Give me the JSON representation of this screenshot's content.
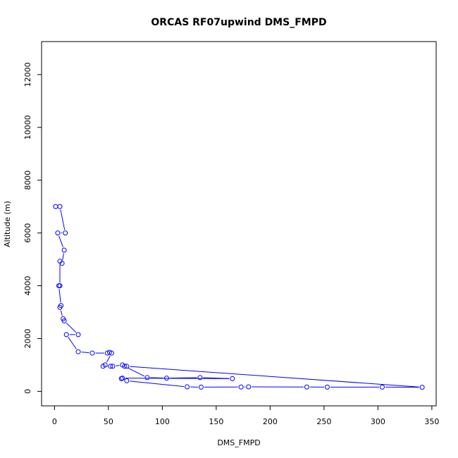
{
  "chart_data": {
    "type": "line",
    "title": "ORCAS RF07upwind DMS_FMPD",
    "xlabel": "DMS_FMPD",
    "ylabel": "Altitude (m)",
    "xlim": [
      -12,
      354
    ],
    "ylim": [
      -550,
      13250
    ],
    "xticks": [
      0,
      50,
      100,
      150,
      200,
      250,
      300,
      350
    ],
    "yticks": [
      0,
      2000,
      4000,
      6000,
      8000,
      10000,
      12000
    ],
    "grid": false,
    "markers": "open-circle",
    "series": [
      {
        "color": "#0000ff",
        "points": [
          [
            1,
            7000
          ],
          [
            5,
            7000
          ],
          [
            10,
            6000
          ],
          [
            3,
            6000
          ],
          [
            9,
            5350
          ],
          [
            7,
            4850
          ],
          [
            5,
            4930
          ],
          [
            5,
            4000
          ],
          [
            4,
            4000
          ],
          [
            6,
            3250
          ],
          [
            5,
            3180
          ],
          [
            8,
            2750
          ],
          [
            9,
            2670
          ],
          [
            22,
            2150
          ],
          [
            11,
            2150
          ],
          [
            22,
            1500
          ],
          [
            35,
            1450
          ],
          [
            49,
            1450
          ],
          [
            51,
            1480
          ],
          [
            53,
            1450
          ],
          [
            47,
            1000
          ],
          [
            45,
            950
          ],
          [
            52,
            950
          ],
          [
            54,
            950
          ],
          [
            63,
            1000
          ],
          [
            65,
            950
          ],
          [
            86,
            520
          ],
          [
            104,
            500
          ],
          [
            135,
            520
          ],
          [
            165,
            480
          ],
          [
            63,
            500
          ],
          [
            62,
            480
          ],
          [
            67,
            400
          ],
          [
            123,
            170
          ],
          [
            136,
            160
          ],
          [
            173,
            165
          ],
          [
            180,
            170
          ],
          [
            234,
            165
          ],
          [
            253,
            160
          ],
          [
            304,
            160
          ],
          [
            341,
            155
          ],
          [
            67,
            950
          ]
        ]
      }
    ]
  }
}
